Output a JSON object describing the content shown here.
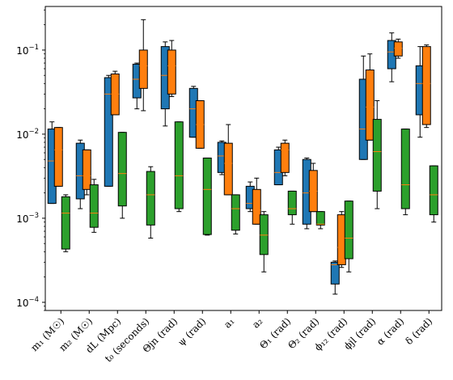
{
  "chart_data": {
    "type": "box",
    "yscale": "log",
    "ylim": [
      8e-05,
      0.33
    ],
    "yticks": [
      {
        "value": 0.0001,
        "label": "10",
        "exp": "−4"
      },
      {
        "value": 0.001,
        "label": "10",
        "exp": "−3"
      },
      {
        "value": 0.01,
        "label": "10",
        "exp": "−2"
      },
      {
        "value": 0.1,
        "label": "10",
        "exp": "−1"
      }
    ],
    "grid": false,
    "series_colors": [
      "#1f77b4",
      "#ff7f0e",
      "#2ca02c"
    ],
    "median_color": "#ff7f0e",
    "categories": [
      "m₁ (M☉)",
      "m₂ (M☉)",
      "dL (Mpc)",
      "t₀ (seconds)",
      "Θjn (rad)",
      "ψ (rad)",
      "a₁",
      "a₂",
      "Θ₁ (rad)",
      "Θ₂ (rad)",
      "ϕ₁₂ (rad)",
      "ϕjl (rad)",
      "α (rad)",
      "δ (rad)"
    ],
    "series": [
      {
        "color": "#1f77b4",
        "boxes": [
          {
            "wlo": 0.0015,
            "q1": 0.0015,
            "med": 0.0048,
            "q3": 0.0115,
            "whi": 0.014
          },
          {
            "wlo": 0.0013,
            "q1": 0.0017,
            "med": 0.0032,
            "q3": 0.0078,
            "whi": 0.0085
          },
          {
            "wlo": 0.0024,
            "q1": 0.0024,
            "med": 0.03,
            "q3": 0.047,
            "whi": 0.05
          },
          {
            "wlo": 0.02,
            "q1": 0.027,
            "med": 0.045,
            "q3": 0.068,
            "whi": 0.07
          },
          {
            "wlo": 0.0125,
            "q1": 0.02,
            "med": 0.05,
            "q3": 0.11,
            "whi": 0.125
          },
          {
            "wlo": 0.0092,
            "q1": 0.0092,
            "med": 0.02,
            "q3": 0.035,
            "whi": 0.037
          },
          {
            "wlo": 0.0033,
            "q1": 0.0035,
            "med": 0.0055,
            "q3": 0.008,
            "whi": 0.0083
          },
          {
            "wlo": 0.0012,
            "q1": 0.0013,
            "med": 0.0015,
            "q3": 0.0024,
            "whi": 0.0027
          },
          {
            "wlo": 0.0025,
            "q1": 0.0025,
            "med": 0.0035,
            "q3": 0.0065,
            "whi": 0.007
          },
          {
            "wlo": 0.00075,
            "q1": 0.00085,
            "med": 0.002,
            "q3": 0.005,
            "whi": 0.0052
          },
          {
            "wlo": 0.000125,
            "q1": 0.000165,
            "med": 0.00028,
            "q3": 0.0003,
            "whi": 0.00031
          },
          {
            "wlo": 0.005,
            "q1": 0.005,
            "med": 0.0115,
            "q3": 0.045,
            "whi": 0.085
          },
          {
            "wlo": 0.042,
            "q1": 0.06,
            "med": 0.095,
            "q3": 0.13,
            "whi": 0.16
          },
          {
            "wlo": 0.0092,
            "q1": 0.017,
            "med": 0.04,
            "q3": 0.065,
            "whi": 0.11
          }
        ]
      },
      {
        "color": "#ff7f0e",
        "boxes": [
          {
            "wlo": 0.0024,
            "q1": 0.0024,
            "med": 0.0065,
            "q3": 0.012,
            "whi": 0.012
          },
          {
            "wlo": 0.0019,
            "q1": 0.0022,
            "med": 0.0032,
            "q3": 0.0065,
            "whi": 0.0065
          },
          {
            "wlo": 0.017,
            "q1": 0.017,
            "med": 0.03,
            "q3": 0.052,
            "whi": 0.056
          },
          {
            "wlo": 0.019,
            "q1": 0.035,
            "med": 0.065,
            "q3": 0.1,
            "whi": 0.23
          },
          {
            "wlo": 0.028,
            "q1": 0.03,
            "med": 0.065,
            "q3": 0.1,
            "whi": 0.13
          },
          {
            "wlo": 0.0068,
            "q1": 0.0068,
            "med": 0.013,
            "q3": 0.025,
            "whi": 0.025
          },
          {
            "wlo": 0.0019,
            "q1": 0.0019,
            "med": 0.0045,
            "q3": 0.0078,
            "whi": 0.013
          },
          {
            "wlo": 0.00085,
            "q1": 0.00085,
            "med": 0.00125,
            "q3": 0.0022,
            "whi": 0.003
          },
          {
            "wlo": 0.0032,
            "q1": 0.0035,
            "med": 0.0065,
            "q3": 0.0078,
            "whi": 0.0085
          },
          {
            "wlo": 0.0012,
            "q1": 0.0012,
            "med": 0.0021,
            "q3": 0.0037,
            "whi": 0.0045
          },
          {
            "wlo": 0.00026,
            "q1": 0.00028,
            "med": 0.00045,
            "q3": 0.0011,
            "whi": 0.0012
          },
          {
            "wlo": 0.0085,
            "q1": 0.0085,
            "med": 0.021,
            "q3": 0.058,
            "whi": 0.09
          },
          {
            "wlo": 0.08,
            "q1": 0.085,
            "med": 0.105,
            "q3": 0.125,
            "whi": 0.135
          },
          {
            "wlo": 0.012,
            "q1": 0.013,
            "med": 0.04,
            "q3": 0.11,
            "whi": 0.115
          }
        ]
      },
      {
        "color": "#2ca02c",
        "boxes": [
          {
            "wlo": 0.0004,
            "q1": 0.00043,
            "med": 0.00115,
            "q3": 0.0018,
            "whi": 0.0019
          },
          {
            "wlo": 0.00068,
            "q1": 0.00078,
            "med": 0.00115,
            "q3": 0.0025,
            "whi": 0.0029
          },
          {
            "wlo": 0.001,
            "q1": 0.0014,
            "med": 0.0034,
            "q3": 0.0105,
            "whi": 0.0105
          },
          {
            "wlo": 0.00058,
            "q1": 0.00083,
            "med": 0.0019,
            "q3": 0.0036,
            "whi": 0.0041
          },
          {
            "wlo": 0.0012,
            "q1": 0.0013,
            "med": 0.0032,
            "q3": 0.014,
            "whi": 0.014
          },
          {
            "wlo": 0.00063,
            "q1": 0.00064,
            "med": 0.0022,
            "q3": 0.0052,
            "whi": 0.0052
          },
          {
            "wlo": 0.00065,
            "q1": 0.00072,
            "med": 0.0013,
            "q3": 0.0019,
            "whi": 0.0019
          },
          {
            "wlo": 0.00023,
            "q1": 0.00037,
            "med": 0.00063,
            "q3": 0.0011,
            "whi": 0.0012
          },
          {
            "wlo": 0.00085,
            "q1": 0.0011,
            "med": 0.0013,
            "q3": 0.0021,
            "whi": 0.0021
          },
          {
            "wlo": 0.00075,
            "q1": 0.00083,
            "med": 0.00085,
            "q3": 0.0012,
            "whi": 0.0012
          },
          {
            "wlo": 0.00023,
            "q1": 0.00033,
            "med": 0.00058,
            "q3": 0.0016,
            "whi": 0.0016
          },
          {
            "wlo": 0.0013,
            "q1": 0.0021,
            "med": 0.0062,
            "q3": 0.015,
            "whi": 0.025
          },
          {
            "wlo": 0.0011,
            "q1": 0.0013,
            "med": 0.0025,
            "q3": 0.0115,
            "whi": 0.0115
          },
          {
            "wlo": 0.0009,
            "q1": 0.0011,
            "med": 0.0019,
            "q3": 0.0042,
            "whi": 0.0042
          }
        ]
      }
    ]
  }
}
